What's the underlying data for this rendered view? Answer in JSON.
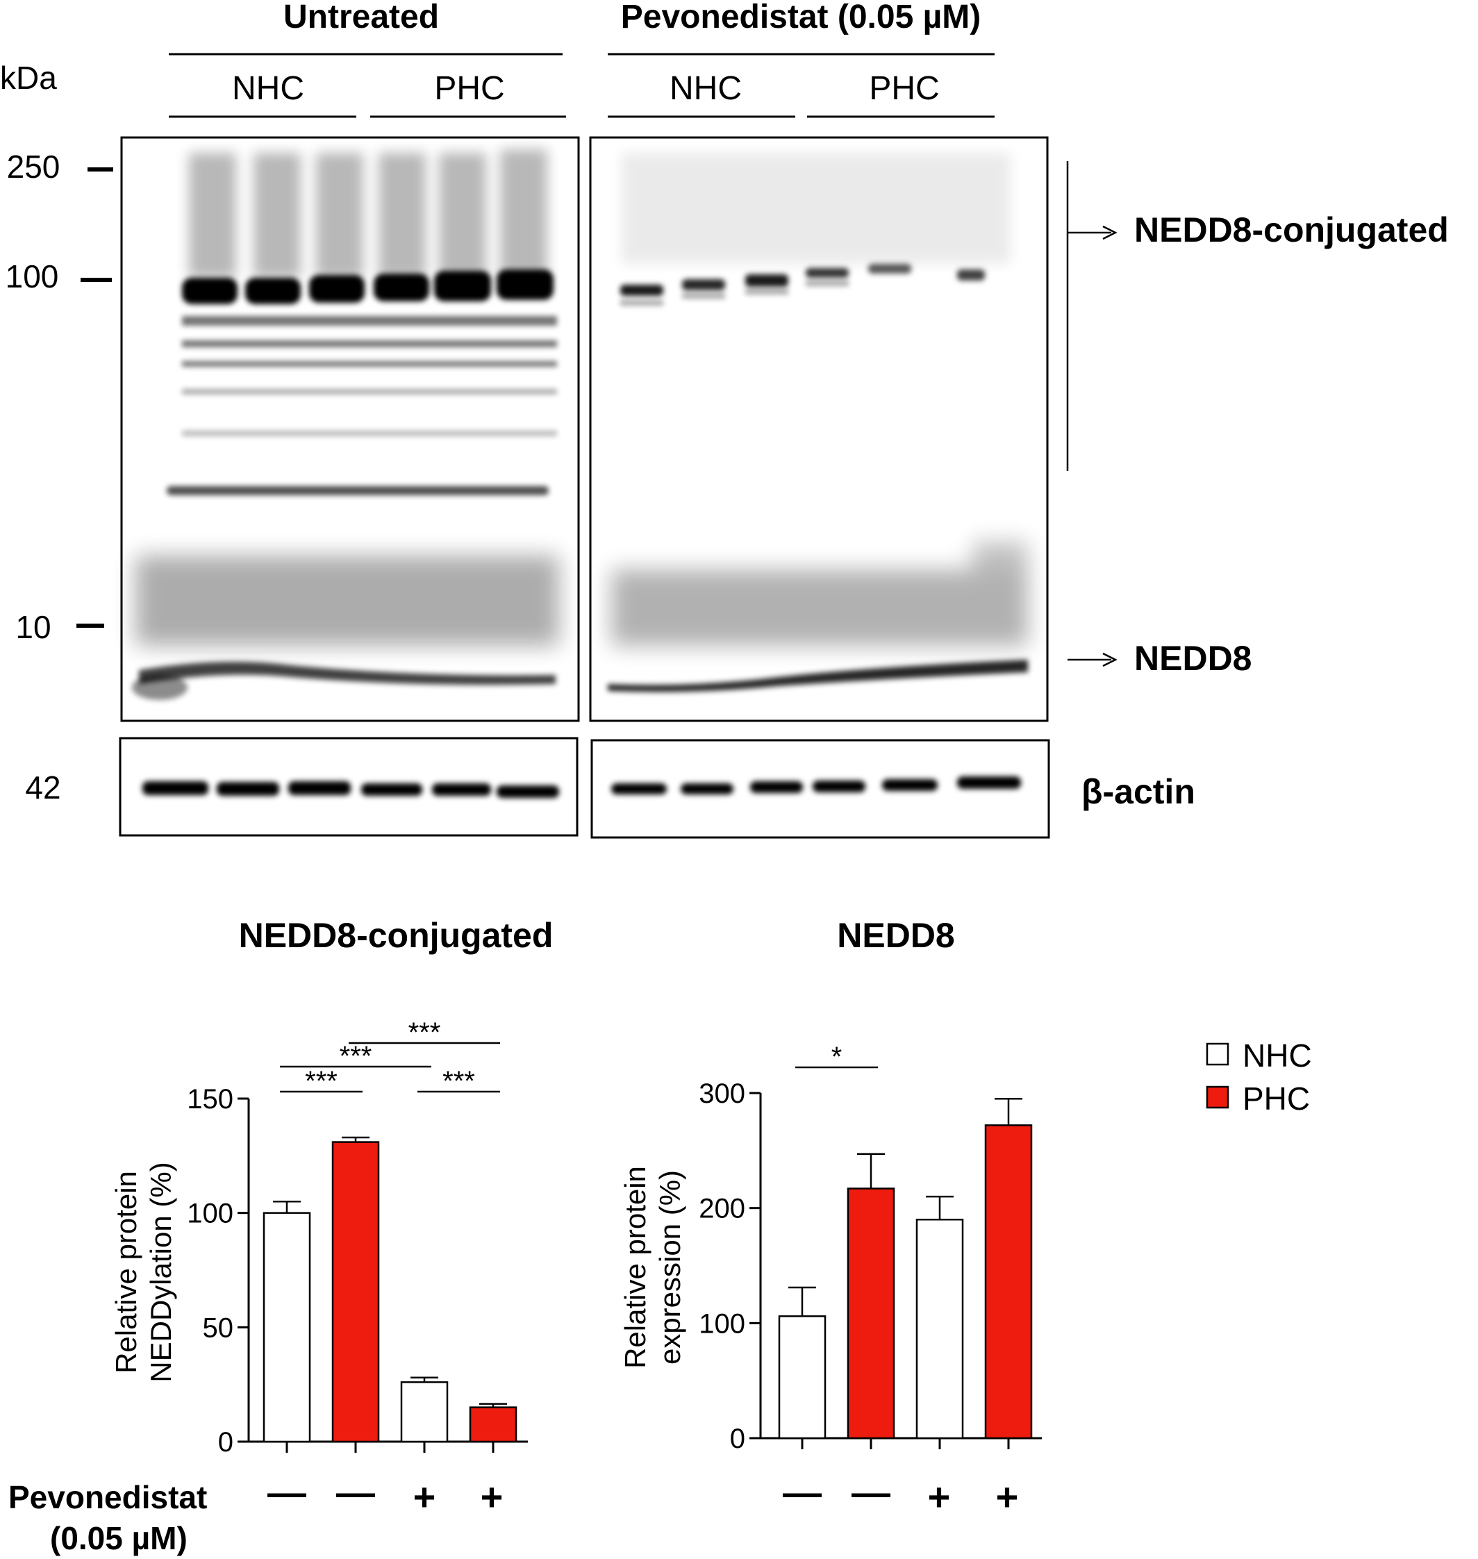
{
  "blot": {
    "groups": [
      {
        "label": "Untreated",
        "subgroups": [
          "NHC",
          "PHC"
        ]
      },
      {
        "label": "Pevonedistat (0.05 µM)",
        "subgroups": [
          "NHC",
          "PHC"
        ]
      }
    ],
    "kda_label": "kDa",
    "markers": [
      "250",
      "100",
      "10",
      "42"
    ],
    "band_labels": [
      "NEDD8-conjugated",
      "NEDD8",
      "β-actin"
    ]
  },
  "treatment": {
    "label_line1": "Pevonedistat",
    "label_line2": "(0.05 µM)",
    "signs": [
      "—",
      "—",
      "+",
      "+"
    ]
  },
  "legend": [
    {
      "label": "NHC",
      "color": "#ffffff"
    },
    {
      "label": "PHC",
      "color": "#ee1c0e"
    }
  ],
  "chart_data": [
    {
      "type": "bar",
      "title": "NEDD8-conjugated",
      "ylabel_lines": [
        "Relative protein",
        "NEDDylation (%)"
      ],
      "categories": [
        "NHC",
        "PHC",
        "NHC",
        "PHC"
      ],
      "values": [
        100,
        131,
        26,
        15
      ],
      "errors": [
        5,
        2,
        2,
        1.5
      ],
      "colors": [
        "#ffffff",
        "#ee1c0e",
        "#ffffff",
        "#ee1c0e"
      ],
      "ylim": [
        0,
        150
      ],
      "yticks": [
        0,
        50,
        100,
        150
      ],
      "significance": [
        {
          "from": 0,
          "to": 1,
          "label": "***"
        },
        {
          "from": 0,
          "to": 2,
          "label": "***"
        },
        {
          "from": 1,
          "to": 3,
          "label": "***"
        },
        {
          "from": 2,
          "to": 3,
          "label": "***"
        }
      ]
    },
    {
      "type": "bar",
      "title": "NEDD8",
      "ylabel_lines": [
        "Relative protein",
        "expression (%)"
      ],
      "categories": [
        "NHC",
        "PHC",
        "NHC",
        "PHC"
      ],
      "values": [
        106,
        217,
        190,
        272
      ],
      "errors": [
        25,
        30,
        20,
        23
      ],
      "colors": [
        "#ffffff",
        "#ee1c0e",
        "#ffffff",
        "#ee1c0e"
      ],
      "ylim": [
        0,
        300
      ],
      "yticks": [
        0,
        100,
        200,
        300
      ],
      "significance": [
        {
          "from": 0,
          "to": 1,
          "label": "*"
        }
      ]
    }
  ]
}
